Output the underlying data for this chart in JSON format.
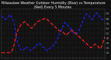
{
  "title": "Milwaukee Weather Outdoor Humidity (Blue) vs Temperature (Red) Every 5 Minutes",
  "bg_color": "#111111",
  "plot_bg_color": "#111111",
  "grid_color": "#555555",
  "blue_color": "#2222ff",
  "red_color": "#ff2222",
  "ylim": [
    0,
    100
  ],
  "humidity": [
    85,
    83,
    82,
    80,
    78,
    80,
    82,
    85,
    88,
    85,
    82,
    78,
    72,
    60,
    45,
    35,
    28,
    22,
    18,
    15,
    14,
    16,
    18,
    20,
    22,
    20,
    18,
    16,
    15,
    16,
    18,
    20,
    22,
    24,
    26,
    28,
    30,
    28,
    26,
    24,
    22,
    20,
    18,
    16,
    15,
    16,
    18,
    20,
    22,
    24,
    26,
    28,
    30,
    35,
    40,
    45,
    50,
    55,
    60,
    65,
    70,
    72,
    70,
    68,
    65,
    62,
    60,
    58,
    55,
    52,
    50,
    48,
    50,
    52,
    55,
    60,
    65,
    70,
    75,
    80,
    85,
    88,
    90,
    88,
    85,
    82,
    80,
    78,
    80,
    85,
    90,
    92,
    90,
    88,
    85,
    82,
    80,
    78,
    80,
    82
  ],
  "temperature": [
    10,
    10,
    10,
    10,
    10,
    10,
    10,
    10,
    10,
    12,
    14,
    18,
    25,
    35,
    45,
    52,
    58,
    62,
    65,
    68,
    70,
    72,
    74,
    72,
    70,
    68,
    66,
    64,
    62,
    60,
    62,
    65,
    68,
    70,
    72,
    74,
    75,
    76,
    77,
    78,
    79,
    80,
    80,
    80,
    78,
    76,
    74,
    72,
    70,
    68,
    66,
    64,
    62,
    60,
    58,
    56,
    55,
    54,
    53,
    52,
    50,
    48,
    46,
    48,
    50,
    52,
    54,
    55,
    56,
    54,
    52,
    50,
    48,
    46,
    44,
    42,
    40,
    38,
    36,
    34,
    32,
    30,
    28,
    26,
    24,
    22,
    20,
    22,
    24,
    26,
    28,
    26,
    24,
    22,
    20,
    18,
    22,
    28,
    35,
    42
  ],
  "yticks": [
    10,
    20,
    30,
    40,
    50,
    60,
    70,
    80,
    90
  ],
  "num_yticks": 9,
  "title_fontsize": 3.5,
  "tick_fontsize": 2.8,
  "line_width": 0.9,
  "dash_blue": [
    3,
    2
  ],
  "dash_red": [
    4,
    2
  ],
  "num_xticks": 30
}
